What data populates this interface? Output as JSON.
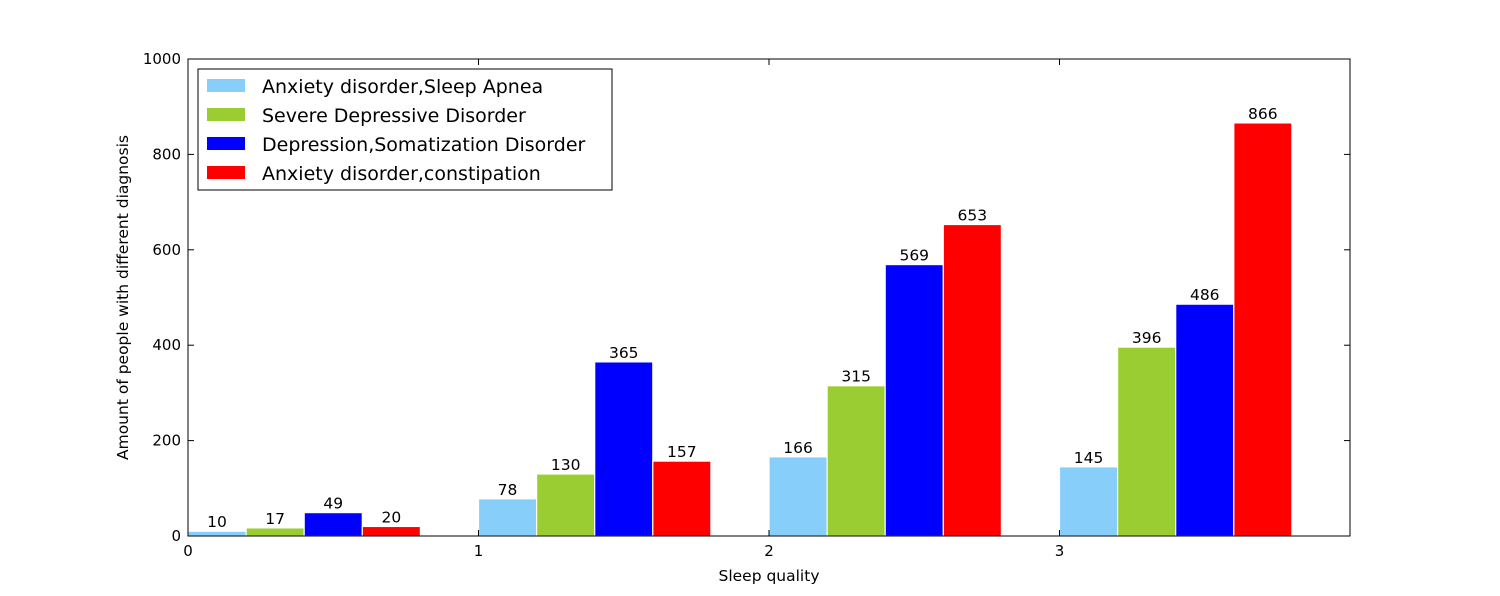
{
  "chart_data": {
    "type": "bar",
    "title": "",
    "xlabel": "Sleep quality",
    "ylabel": "Amount of people with different diagnosis",
    "x": [
      0,
      1,
      2,
      3
    ],
    "xticks": [
      "0",
      "1",
      "2",
      "3"
    ],
    "xlim": [
      0,
      4
    ],
    "ylim": [
      0,
      1000
    ],
    "yticks": [
      "0",
      "200",
      "400",
      "600",
      "800",
      "1000"
    ],
    "grid": false,
    "legend_position": "upper-left",
    "series": [
      {
        "name": "Anxiety disorder,Sleep Apnea",
        "color": "#87CEFA",
        "values": [
          10,
          78,
          166,
          145
        ]
      },
      {
        "name": "Severe Depressive Disorder",
        "color": "#9ACD32",
        "values": [
          17,
          130,
          315,
          396
        ]
      },
      {
        "name": "Depression,Somatization Disorder",
        "color": "#0000FF",
        "values": [
          49,
          365,
          569,
          486
        ]
      },
      {
        "name": "Anxiety disorder,constipation",
        "color": "#FF0000",
        "values": [
          20,
          157,
          653,
          866
        ]
      }
    ]
  }
}
